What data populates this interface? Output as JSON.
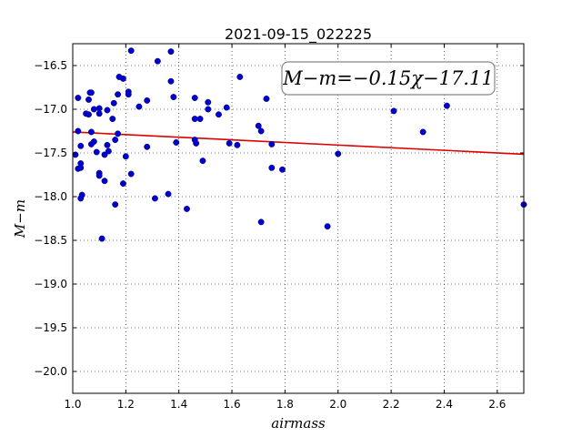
{
  "chart_data": {
    "type": "scatter",
    "title": "2021-09-15_022225",
    "xlabel": "airmass",
    "ylabel": "M−m",
    "xlim": [
      1.0,
      2.7
    ],
    "ylim": [
      -20.25,
      -16.25
    ],
    "xticks": [
      1.0,
      1.2,
      1.4,
      1.6,
      1.8,
      2.0,
      2.2,
      2.4,
      2.6
    ],
    "yticks": [
      -16.5,
      -17.0,
      -17.5,
      -18.0,
      -18.5,
      -19.0,
      -19.5,
      -20.0
    ],
    "grid": true,
    "annotation": "M−m=−0.15χ−17.11",
    "colors": {
      "points": "#0000cc",
      "fit": "#dd0000"
    },
    "fit": {
      "slope": -0.15,
      "intercept": -17.11
    },
    "points": [
      {
        "x": 1.01,
        "y": -17.52
      },
      {
        "x": 1.02,
        "y": -16.87
      },
      {
        "x": 1.02,
        "y": -17.25
      },
      {
        "x": 1.02,
        "y": -17.68
      },
      {
        "x": 1.03,
        "y": -17.62
      },
      {
        "x": 1.03,
        "y": -17.67
      },
      {
        "x": 1.03,
        "y": -18.02
      },
      {
        "x": 1.035,
        "y": -17.98
      },
      {
        "x": 1.03,
        "y": -17.42
      },
      {
        "x": 1.05,
        "y": -17.05
      },
      {
        "x": 1.06,
        "y": -17.06
      },
      {
        "x": 1.06,
        "y": -16.89
      },
      {
        "x": 1.065,
        "y": -16.81
      },
      {
        "x": 1.07,
        "y": -16.81
      },
      {
        "x": 1.07,
        "y": -17.26
      },
      {
        "x": 1.07,
        "y": -17.4
      },
      {
        "x": 1.08,
        "y": -17.0
      },
      {
        "x": 1.08,
        "y": -17.37
      },
      {
        "x": 1.09,
        "y": -17.49
      },
      {
        "x": 1.1,
        "y": -17.05
      },
      {
        "x": 1.1,
        "y": -16.99
      },
      {
        "x": 1.1,
        "y": -17.73
      },
      {
        "x": 1.1,
        "y": -17.76
      },
      {
        "x": 1.11,
        "y": -18.48
      },
      {
        "x": 1.12,
        "y": -17.82
      },
      {
        "x": 1.12,
        "y": -17.52
      },
      {
        "x": 1.13,
        "y": -17.41
      },
      {
        "x": 1.135,
        "y": -17.48
      },
      {
        "x": 1.13,
        "y": -17.01
      },
      {
        "x": 1.15,
        "y": -17.11
      },
      {
        "x": 1.155,
        "y": -16.93
      },
      {
        "x": 1.16,
        "y": -17.35
      },
      {
        "x": 1.16,
        "y": -18.09
      },
      {
        "x": 1.17,
        "y": -16.83
      },
      {
        "x": 1.17,
        "y": -17.28
      },
      {
        "x": 1.175,
        "y": -16.63
      },
      {
        "x": 1.19,
        "y": -16.65
      },
      {
        "x": 1.19,
        "y": -17.85
      },
      {
        "x": 1.2,
        "y": -17.54
      },
      {
        "x": 1.21,
        "y": -16.8
      },
      {
        "x": 1.21,
        "y": -16.83
      },
      {
        "x": 1.22,
        "y": -17.74
      },
      {
        "x": 1.22,
        "y": -16.33
      },
      {
        "x": 1.25,
        "y": -16.97
      },
      {
        "x": 1.28,
        "y": -16.9
      },
      {
        "x": 1.28,
        "y": -17.43
      },
      {
        "x": 1.31,
        "y": -18.02
      },
      {
        "x": 1.32,
        "y": -16.45
      },
      {
        "x": 1.36,
        "y": -17.97
      },
      {
        "x": 1.37,
        "y": -16.34
      },
      {
        "x": 1.37,
        "y": -16.68
      },
      {
        "x": 1.38,
        "y": -16.86
      },
      {
        "x": 1.39,
        "y": -17.38
      },
      {
        "x": 1.43,
        "y": -18.14
      },
      {
        "x": 1.46,
        "y": -17.11
      },
      {
        "x": 1.46,
        "y": -16.87
      },
      {
        "x": 1.46,
        "y": -17.35
      },
      {
        "x": 1.465,
        "y": -17.39
      },
      {
        "x": 1.48,
        "y": -17.11
      },
      {
        "x": 1.49,
        "y": -17.59
      },
      {
        "x": 1.51,
        "y": -17.0
      },
      {
        "x": 1.51,
        "y": -16.92
      },
      {
        "x": 1.55,
        "y": -17.06
      },
      {
        "x": 1.58,
        "y": -16.98
      },
      {
        "x": 1.59,
        "y": -17.39
      },
      {
        "x": 1.62,
        "y": -17.41
      },
      {
        "x": 1.63,
        "y": -16.63
      },
      {
        "x": 1.7,
        "y": -17.19
      },
      {
        "x": 1.71,
        "y": -18.29
      },
      {
        "x": 1.71,
        "y": -17.25
      },
      {
        "x": 1.73,
        "y": -16.88
      },
      {
        "x": 1.75,
        "y": -17.4
      },
      {
        "x": 1.75,
        "y": -17.67
      },
      {
        "x": 1.79,
        "y": -17.69
      },
      {
        "x": 1.96,
        "y": -18.34
      },
      {
        "x": 2.0,
        "y": -17.51
      },
      {
        "x": 2.21,
        "y": -17.02
      },
      {
        "x": 2.32,
        "y": -17.26
      },
      {
        "x": 2.41,
        "y": -16.96
      },
      {
        "x": 2.7,
        "y": -18.09
      }
    ]
  }
}
